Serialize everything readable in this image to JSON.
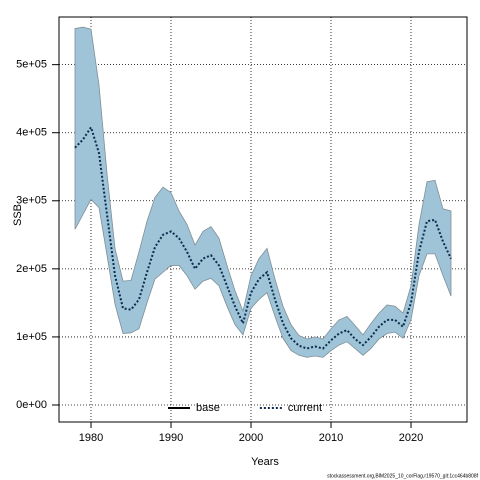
{
  "chart_data": {
    "type": "line",
    "xlabel": "Years",
    "ylabel": "SSB",
    "x": [
      1978,
      1979,
      1980,
      1981,
      1982,
      1983,
      1984,
      1985,
      1986,
      1987,
      1988,
      1989,
      1990,
      1991,
      1992,
      1993,
      1994,
      1995,
      1996,
      1997,
      1998,
      1999,
      2000,
      2001,
      2002,
      2003,
      2004,
      2005,
      2006,
      2007,
      2008,
      2009,
      2010,
      2011,
      2012,
      2013,
      2014,
      2015,
      2016,
      2017,
      2018,
      2019,
      2020,
      2021,
      2022,
      2023,
      2024,
      2025
    ],
    "series": [
      {
        "name": "current",
        "color": "#0b2c4d",
        "values": [
          378000,
          390000,
          408000,
          370000,
          280000,
          190000,
          142000,
          140000,
          155000,
          195000,
          232000,
          250000,
          255000,
          245000,
          225000,
          200000,
          215000,
          220000,
          205000,
          175000,
          145000,
          120000,
          165000,
          185000,
          195000,
          155000,
          120000,
          98000,
          87000,
          83000,
          86000,
          83000,
          95000,
          105000,
          110000,
          97000,
          88000,
          100000,
          115000,
          125000,
          125000,
          115000,
          150000,
          225000,
          270000,
          272000,
          240000,
          215000
        ]
      }
    ],
    "band": {
      "color": "#9fc3d7",
      "upper": [
        553000,
        555000,
        552000,
        470000,
        340000,
        230000,
        182000,
        183000,
        225000,
        270000,
        305000,
        320000,
        312000,
        285000,
        265000,
        235000,
        255000,
        262000,
        245000,
        205000,
        168000,
        138000,
        190000,
        215000,
        230000,
        185000,
        145000,
        118000,
        102000,
        97000,
        100000,
        97000,
        112000,
        125000,
        130000,
        117000,
        103000,
        120000,
        135000,
        147000,
        145000,
        135000,
        175000,
        265000,
        328000,
        330000,
        288000,
        285000
      ],
      "lower": [
        258000,
        280000,
        302000,
        290000,
        220000,
        148000,
        105000,
        106000,
        112000,
        150000,
        185000,
        195000,
        205000,
        205000,
        190000,
        170000,
        182000,
        186000,
        175000,
        145000,
        118000,
        103000,
        142000,
        155000,
        165000,
        130000,
        98000,
        80000,
        73000,
        70000,
        72000,
        70000,
        80000,
        88000,
        93000,
        83000,
        73000,
        83000,
        97000,
        105000,
        107000,
        98000,
        125000,
        190000,
        222000,
        222000,
        190000,
        160000
      ]
    },
    "legend": [
      {
        "label": "base",
        "color": "#000000",
        "style": "solid"
      },
      {
        "label": "current",
        "color": "#0b2c4d",
        "style": "dotted"
      }
    ],
    "xlim": [
      1976,
      2027
    ],
    "xticks": [
      1980,
      1990,
      2000,
      2010,
      2020
    ],
    "ylim": [
      -25000,
      570000
    ],
    "yticks": [
      {
        "value": 0,
        "label": "0e+00"
      },
      {
        "value": 100000,
        "label": "1e+05"
      },
      {
        "value": 200000,
        "label": "2e+05"
      },
      {
        "value": 300000,
        "label": "3e+05"
      },
      {
        "value": 400000,
        "label": "4e+05"
      },
      {
        "value": 500000,
        "label": "5e+05"
      }
    ],
    "grid": true,
    "footer": "stockassessment.org,BlM2025_10_corFlag,r19570_git:1cc464b808f"
  }
}
